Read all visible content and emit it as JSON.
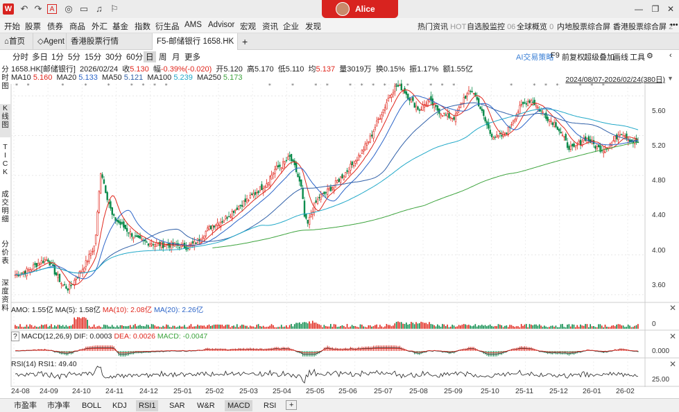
{
  "titlebar": {
    "logo": "W",
    "username": "Alice",
    "icons": [
      "back-icon",
      "forward-icon",
      "pdf-icon",
      "chat-icon",
      "screen-icon",
      "bell-icon",
      "shirt-icon"
    ]
  },
  "menu": {
    "items": [
      "开始",
      "股票",
      "债券",
      "商品",
      "外汇",
      "基金",
      "指数",
      "衍生品",
      "AMS",
      "Advisor",
      "宏观",
      "资讯",
      "企业",
      "发现"
    ],
    "right": [
      {
        "label": "热门资讯",
        "sub": "HOT"
      },
      {
        "label": "自选股监控",
        "sub": "06"
      },
      {
        "label": "全球概览",
        "sub": "0"
      },
      {
        "label": "内地股票综合屏",
        "sub": "1"
      },
      {
        "label": "香港股票综合屏",
        "sub": "2"
      }
    ],
    "more": "•••"
  },
  "tabs": {
    "home": "首页",
    "agent": "Agent",
    "hk_quotes": "香港股票行情",
    "active": "F5-邮储银行 1658.HK",
    "add": "+"
  },
  "periods": [
    "分时",
    "多日",
    "1分",
    "5分",
    "15分",
    "30分",
    "60分",
    "日",
    "周",
    "月",
    "更多"
  ],
  "active_period": "日",
  "tools": {
    "ai": "AI交易策略",
    "f9": "F9",
    "adjust": "前复权",
    "overlay": "超级叠加",
    "draw": "画线",
    "tool": "工具"
  },
  "side_tabs": [
    "分时图",
    "K线图",
    "TICK",
    "成交明细",
    "分价表",
    "深度资料"
  ],
  "quote": {
    "code": "1658.HK[邮储银行]",
    "date": "2026/02/24",
    "close_label": "收",
    "close": "5.130",
    "chg_label": "幅",
    "chg": "-0.39%(-0.020)",
    "open_label": "开",
    "open": "5.120",
    "high_label": "高",
    "high": "5.170",
    "low_label": "低",
    "low": "5.110",
    "avg_label": "均",
    "avg": "5.137",
    "vol_label": "量",
    "vol": "3019万",
    "turn_label": "换",
    "turn": "0.15%",
    "amp_label": "振",
    "amp": "1.17%",
    "amt_label": "额",
    "amt": "1.55亿"
  },
  "ma": {
    "ma10_label": "MA10",
    "ma10": "5.160",
    "ma20_label": "MA20",
    "ma20": "5.133",
    "ma50_label": "MA50",
    "ma50": "5.121",
    "ma100_label": "MA100",
    "ma100": "5.239",
    "ma250_label": "MA250",
    "ma250": "5.173",
    "colors": {
      "ma10": "#e0251b",
      "ma20": "#2b64c8",
      "ma50": "#3060a8",
      "ma100": "#20a8c8",
      "ma250": "#3ca33c"
    }
  },
  "range": "2024/08/07-2026/02/24(380日)",
  "amo": {
    "label": "AMO: 1.55亿",
    "ma5": "MA(5): 1.58亿",
    "ma10": "MA(10): 2.08亿",
    "ma20": "MA(20): 2.26亿",
    "axis0": "0"
  },
  "macd": {
    "help": "?",
    "label": "MACD(12,26,9)",
    "dif": "DIF: 0.0003",
    "dea": "DEA: 0.0026",
    "macd": "MACD: -0.0047",
    "axis": "0.000"
  },
  "rsi": {
    "label": "RSI(14)",
    "rsi1": "RSI1: 49.40",
    "axis": "25.00"
  },
  "bottom_tabs": [
    "市盈率",
    "市净率",
    "BOLL",
    "KDJ",
    "RSI1",
    "SAR",
    "W&R",
    "MACD",
    "RSI"
  ],
  "bottom_active": [
    "RSI1",
    "MACD"
  ],
  "chart_data": {
    "type": "candlestick",
    "y_ticks": [
      "5.60",
      "5.20",
      "4.80",
      "4.40",
      "4.00",
      "3.60"
    ],
    "ylim": [
      3.55,
      5.72
    ],
    "x_ticks": [
      "24-08",
      "24-09",
      "24-10",
      "24-11",
      "24-12",
      "25-01",
      "25-02",
      "25-03",
      "25-04",
      "25-05",
      "25-06",
      "25-07",
      "25-08",
      "25-09",
      "25-10",
      "25-11",
      "25-12",
      "26-01",
      "26-02"
    ],
    "close_path": [
      [
        0,
        3.8
      ],
      [
        8,
        3.84
      ],
      [
        16,
        3.92
      ],
      [
        22,
        3.96
      ],
      [
        27,
        3.82
      ],
      [
        32,
        3.7
      ],
      [
        36,
        3.66
      ],
      [
        42,
        3.78
      ],
      [
        48,
        3.92
      ],
      [
        54,
        4.1
      ],
      [
        58,
        4.86
      ],
      [
        62,
        4.6
      ],
      [
        66,
        4.38
      ],
      [
        72,
        4.3
      ],
      [
        78,
        4.22
      ],
      [
        84,
        4.14
      ],
      [
        92,
        4.12
      ],
      [
        100,
        4.1
      ],
      [
        108,
        4.1
      ],
      [
        116,
        4.08
      ],
      [
        122,
        4.12
      ],
      [
        128,
        4.22
      ],
      [
        134,
        4.3
      ],
      [
        140,
        4.34
      ],
      [
        146,
        4.42
      ],
      [
        152,
        4.5
      ],
      [
        158,
        4.56
      ],
      [
        164,
        4.64
      ],
      [
        170,
        4.72
      ],
      [
        176,
        4.86
      ],
      [
        182,
        4.92
      ],
      [
        186,
        4.98
      ],
      [
        190,
        4.86
      ],
      [
        194,
        4.66
      ],
      [
        196,
        4.38
      ],
      [
        198,
        4.3
      ],
      [
        202,
        4.48
      ],
      [
        206,
        4.58
      ],
      [
        210,
        4.62
      ],
      [
        216,
        4.7
      ],
      [
        222,
        4.8
      ],
      [
        228,
        4.9
      ],
      [
        234,
        5.02
      ],
      [
        240,
        5.16
      ],
      [
        246,
        5.36
      ],
      [
        250,
        5.48
      ],
      [
        254,
        5.62
      ],
      [
        258,
        5.7
      ],
      [
        262,
        5.68
      ],
      [
        266,
        5.6
      ],
      [
        270,
        5.52
      ],
      [
        274,
        5.46
      ],
      [
        280,
        5.56
      ],
      [
        286,
        5.46
      ],
      [
        292,
        5.4
      ],
      [
        298,
        5.38
      ],
      [
        304,
        5.58
      ],
      [
        310,
        5.66
      ],
      [
        314,
        5.52
      ],
      [
        318,
        5.36
      ],
      [
        322,
        5.22
      ],
      [
        326,
        5.18
      ],
      [
        330,
        5.2
      ],
      [
        334,
        5.26
      ],
      [
        338,
        5.38
      ],
      [
        342,
        5.48
      ],
      [
        346,
        5.54
      ],
      [
        350,
        5.56
      ],
      [
        354,
        5.48
      ],
      [
        358,
        5.42
      ],
      [
        362,
        5.36
      ],
      [
        366,
        5.32
      ],
      [
        370,
        5.22
      ],
      [
        374,
        5.1
      ],
      [
        378,
        5.06
      ],
      [
        382,
        5.12
      ],
      [
        386,
        5.18
      ],
      [
        390,
        5.14
      ],
      [
        394,
        5.08
      ],
      [
        398,
        5.06
      ],
      [
        402,
        5.1
      ],
      [
        406,
        5.16
      ],
      [
        410,
        5.24
      ],
      [
        414,
        5.2
      ],
      [
        418,
        5.14
      ],
      [
        422,
        5.13
      ]
    ],
    "rsi_last": 49.4
  }
}
